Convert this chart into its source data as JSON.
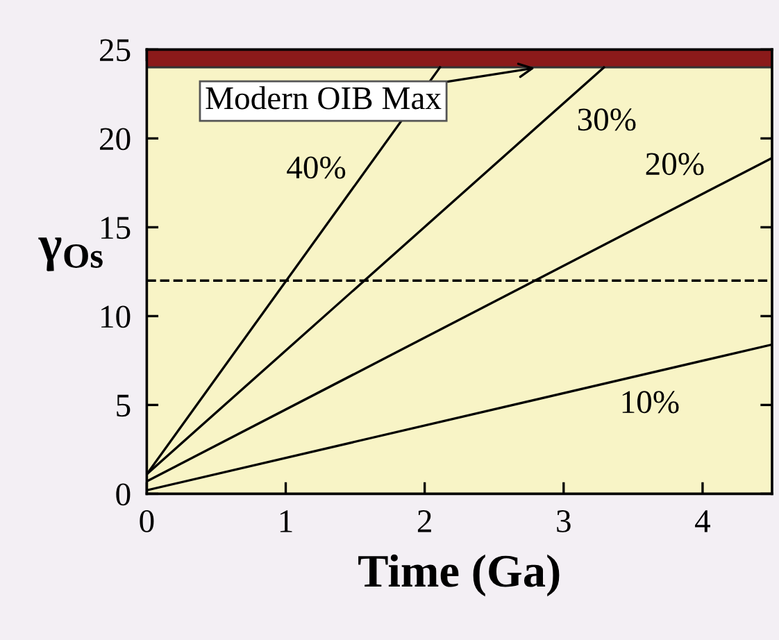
{
  "chart_data": {
    "type": "line",
    "xlabel": "Time (Ga)",
    "ylabel": "γ$_{Os}$",
    "xlim": [
      0,
      4.5
    ],
    "ylim": [
      0,
      25
    ],
    "xticks": [
      0,
      1,
      2,
      3,
      4
    ],
    "yticks": [
      0,
      5,
      10,
      15,
      20,
      25
    ],
    "grid": false,
    "legend": false,
    "marker": "none",
    "line_style": "solid",
    "series": [
      {
        "name": "40%",
        "color": "#000000",
        "x": [
          0,
          2.11
        ],
        "values": [
          1.1,
          24
        ]
      },
      {
        "name": "30%",
        "color": "#000000",
        "x": [
          0,
          3.29
        ],
        "values": [
          1.1,
          24
        ]
      },
      {
        "name": "20%",
        "color": "#000000",
        "x": [
          0,
          4.5
        ],
        "values": [
          0.7,
          18.9
        ]
      },
      {
        "name": "10%",
        "color": "#000000",
        "x": [
          0,
          4.5
        ],
        "values": [
          0.2,
          8.4
        ]
      }
    ],
    "ref_lines": [
      {
        "axis": "y",
        "value": 12,
        "color": "#000000",
        "line_style": "dashed"
      }
    ],
    "bands": [
      {
        "axis": "y",
        "from": 24,
        "to": 25,
        "color": "#8b1a1a"
      }
    ],
    "annotations": [
      {
        "text": "Modern OIB Max",
        "x": 2.82,
        "y": 24
      }
    ]
  }
}
